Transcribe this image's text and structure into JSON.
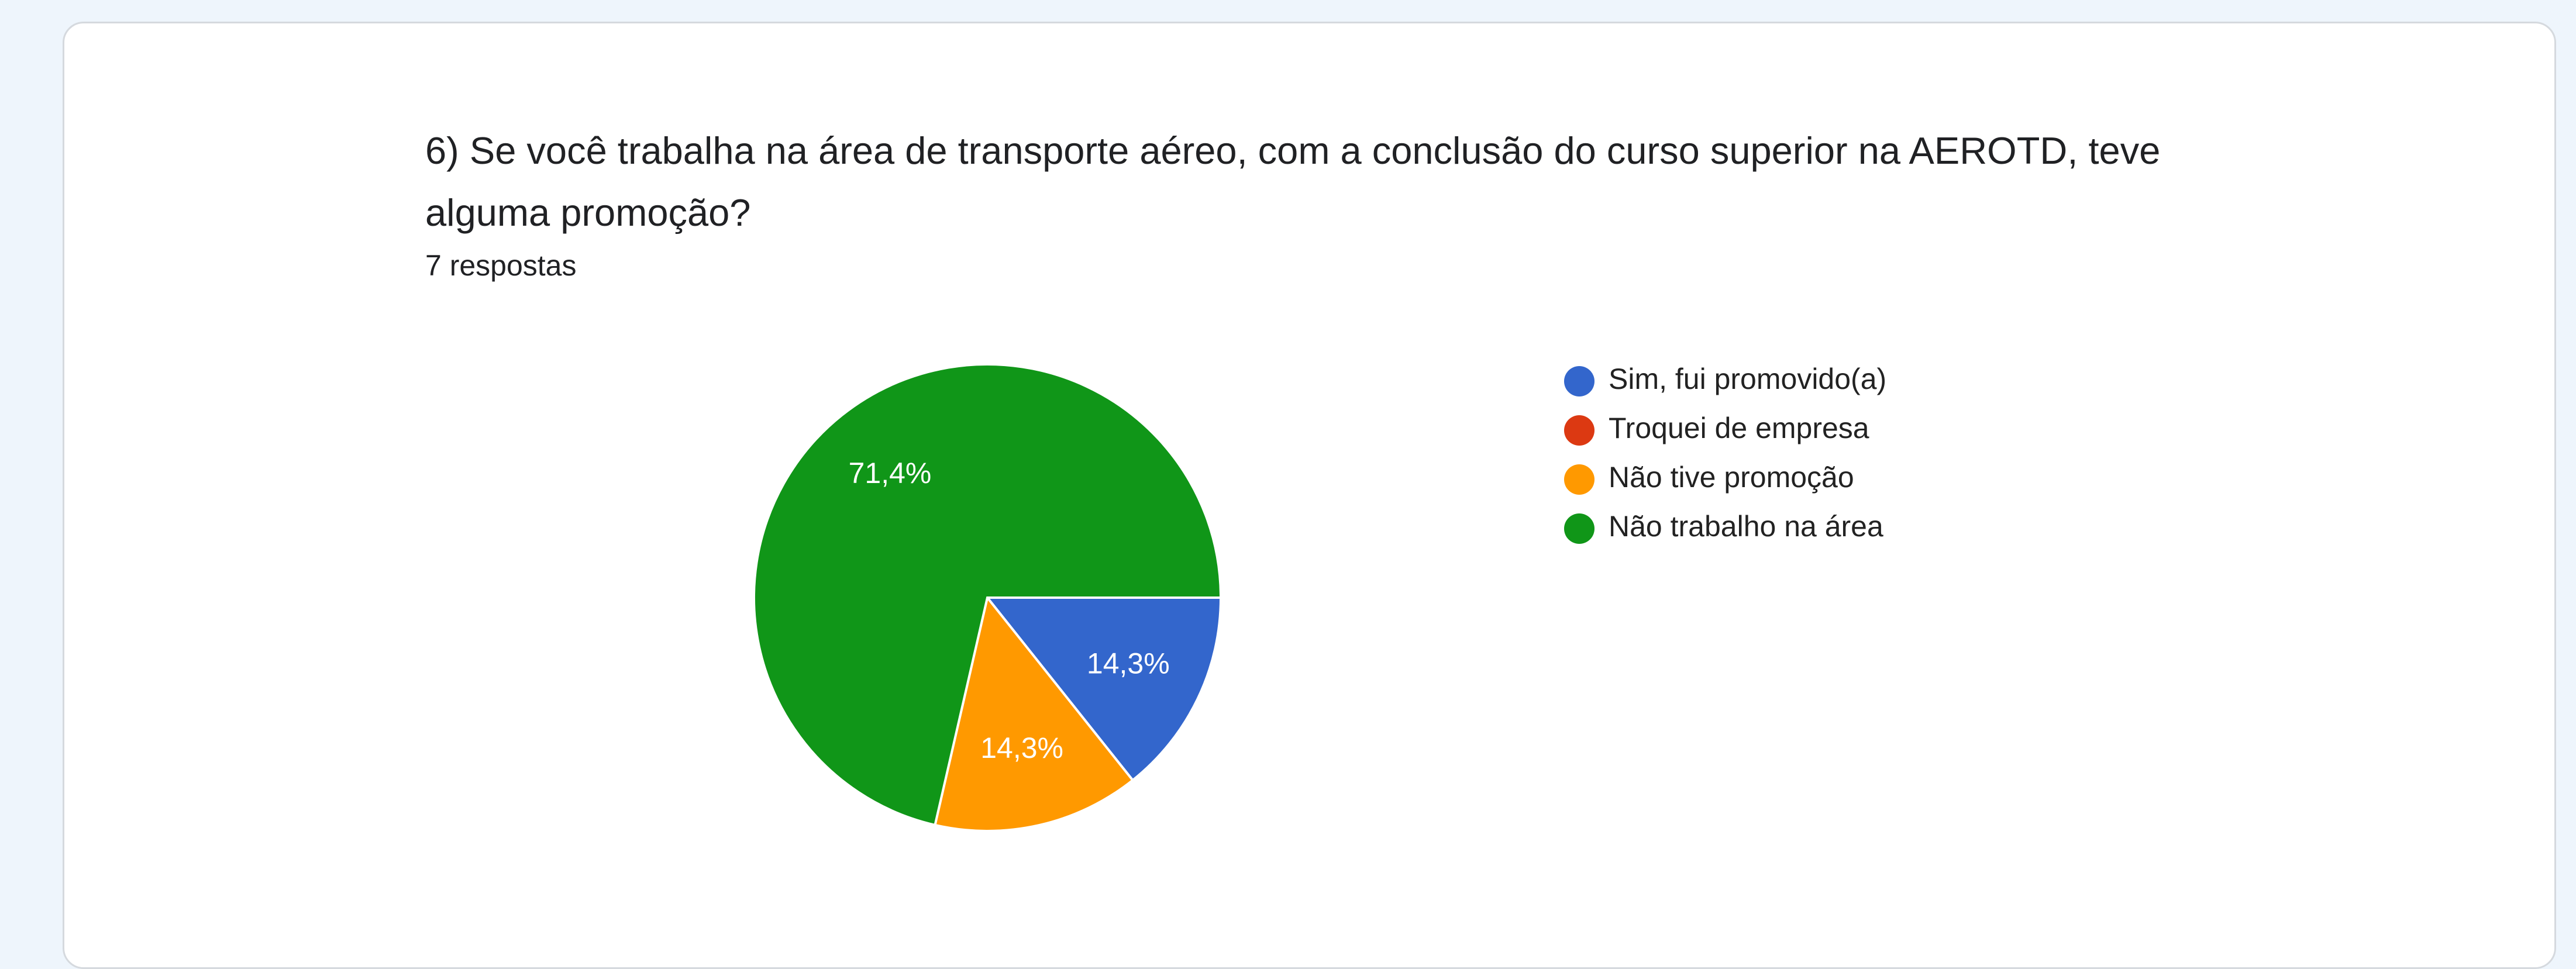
{
  "chart_data": {
    "type": "pie",
    "title": "6) Se você trabalha na área de transporte aéreo, com a conclusão do curso superior na AEROTD, teve alguma promoção?",
    "subtitle": "7 respostas",
    "categories": [
      "Sim, fui promovido(a)",
      "Troquei de empresa",
      "Não tive promoção",
      "Não trabalho na área"
    ],
    "values": [
      14.3,
      0,
      14.3,
      71.4
    ],
    "value_labels": [
      "14,3%",
      null,
      "14,3%",
      "71,4%"
    ],
    "colors": [
      "#3366cc",
      "#dc3912",
      "#ff9900",
      "#109618"
    ],
    "legend": "right"
  }
}
